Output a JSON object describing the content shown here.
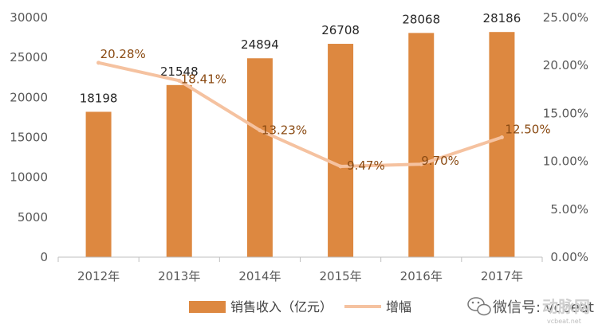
{
  "chart_data": {
    "type": "bar",
    "categories": [
      "2012年",
      "2013年",
      "2014年",
      "2015年",
      "2016年",
      "2017年"
    ],
    "series": [
      {
        "name": "销售收入（亿元）",
        "type": "bar",
        "axis": "left",
        "values": [
          18198,
          21548,
          24894,
          26708,
          28068,
          28186
        ],
        "labels": [
          "18198",
          "21548",
          "24894",
          "26708",
          "28068",
          "28186"
        ]
      },
      {
        "name": "增幅",
        "type": "line",
        "axis": "right",
        "values": [
          20.28,
          18.41,
          13.23,
          9.47,
          9.7,
          12.5
        ],
        "labels": [
          "20.28%",
          "18.41%",
          "13.23%",
          "9.47%",
          "9.70%",
          "12.50%"
        ]
      }
    ],
    "y_left": {
      "ylim": [
        0,
        30000
      ],
      "ticks": [
        "0",
        "5000",
        "10000",
        "15000",
        "20000",
        "25000",
        "30000"
      ]
    },
    "y_right": {
      "ylim": [
        0,
        25
      ],
      "ticks": [
        "0.00%",
        "5.00%",
        "10.00%",
        "15.00%",
        "20.00%",
        "25.00%"
      ]
    },
    "grid": false,
    "legend_position": "bottom",
    "colors": {
      "bar": "#dd8840",
      "line": "#f5c2a0",
      "label_text": "#8a4a12"
    }
  },
  "watermark": {
    "text": "微信号: vcbeat",
    "logo_text": "动脉网",
    "logo_sub": "vcbeat.net"
  }
}
